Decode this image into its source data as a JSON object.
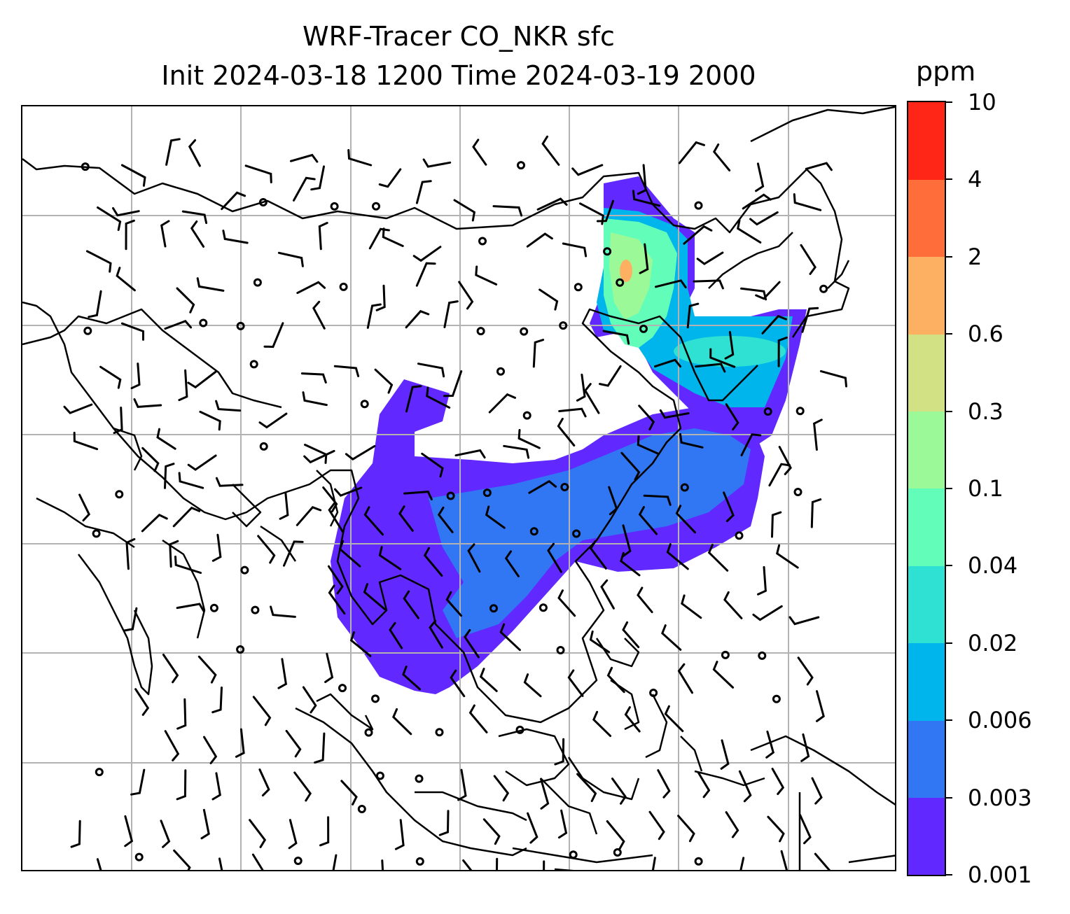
{
  "title": {
    "line1": "WRF-Tracer CO_NKR sfc",
    "line2": "Init 2024-03-18 1200 Time 2024-03-19 2000"
  },
  "colorbar": {
    "unit": "ppm",
    "ticks": [
      "0.001",
      "0.003",
      "0.006",
      "0.02",
      "0.04",
      "0.1",
      "0.3",
      "0.6",
      "2",
      "4",
      "10"
    ],
    "colors": [
      "#6128ff",
      "#3176f2",
      "#00b4ec",
      "#2fe1d3",
      "#63fdba",
      "#9cf997",
      "#d1e184",
      "#fdb062",
      "#fe6d3a",
      "#ff2517"
    ]
  },
  "map": {
    "gridlines": true,
    "coastline_color": "#000000",
    "wind_barb_color": "#000000",
    "plume_levels": {
      "wide_southern_band": "0.001-0.003",
      "core_band": "0.003-0.006",
      "northeast_plume": "0.02-0.3",
      "source_hotspot": "0.6-2"
    }
  }
}
